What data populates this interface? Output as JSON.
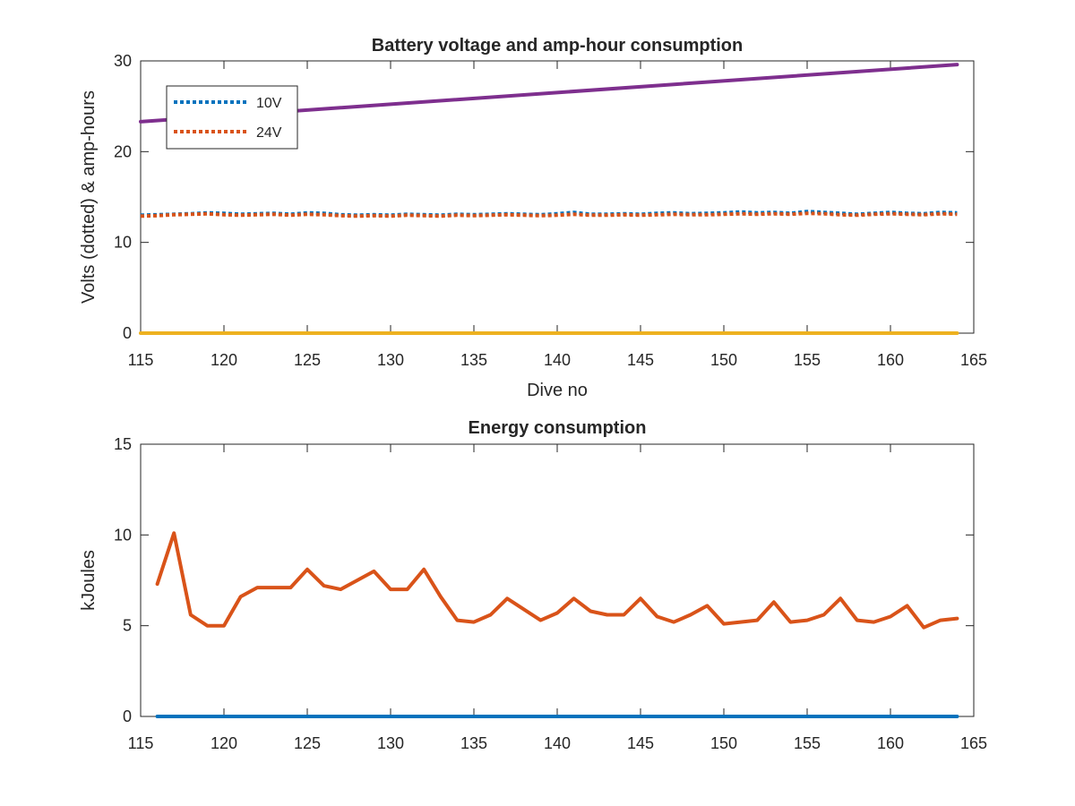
{
  "chart_data": [
    {
      "type": "line",
      "title": "Battery voltage and amp-hour consumption",
      "xlabel": "Dive no",
      "ylabel": "Volts (dotted) & amp-hours",
      "xlim": [
        115,
        165
      ],
      "ylim": [
        0,
        30
      ],
      "xticks": [
        "115",
        "120",
        "125",
        "130",
        "135",
        "140",
        "145",
        "150",
        "155",
        "160",
        "165"
      ],
      "yticks": [
        "0",
        "10",
        "20",
        "30"
      ],
      "grid": false,
      "legend_position": "top-left",
      "series": [
        {
          "name": "10V",
          "style": "dotted",
          "color": "#0072BD",
          "x": [
            115,
            116,
            117,
            118,
            119,
            120,
            121,
            122,
            123,
            124,
            125,
            126,
            127,
            128,
            129,
            130,
            131,
            132,
            133,
            134,
            135,
            136,
            137,
            138,
            139,
            140,
            141,
            142,
            143,
            144,
            145,
            146,
            147,
            148,
            149,
            150,
            151,
            152,
            153,
            154,
            155,
            156,
            157,
            158,
            159,
            160,
            161,
            162,
            163,
            164
          ],
          "y": [
            13.0,
            13.05,
            13.1,
            13.15,
            13.25,
            13.2,
            13.1,
            13.15,
            13.2,
            13.1,
            13.25,
            13.2,
            13.05,
            13.0,
            13.05,
            13.0,
            13.1,
            13.05,
            13.0,
            13.1,
            13.05,
            13.1,
            13.15,
            13.1,
            13.05,
            13.15,
            13.3,
            13.1,
            13.1,
            13.15,
            13.1,
            13.2,
            13.25,
            13.15,
            13.2,
            13.25,
            13.35,
            13.25,
            13.3,
            13.2,
            13.4,
            13.3,
            13.2,
            13.1,
            13.2,
            13.3,
            13.2,
            13.15,
            13.3,
            13.25
          ]
        },
        {
          "name": "24V",
          "style": "dotted",
          "color": "#D95319",
          "x": [
            115,
            116,
            117,
            118,
            119,
            120,
            121,
            122,
            123,
            124,
            125,
            126,
            127,
            128,
            129,
            130,
            131,
            132,
            133,
            134,
            135,
            136,
            137,
            138,
            139,
            140,
            141,
            142,
            143,
            144,
            145,
            146,
            147,
            148,
            149,
            150,
            151,
            152,
            153,
            154,
            155,
            156,
            157,
            158,
            159,
            160,
            161,
            162,
            163,
            164
          ],
          "y": [
            12.9,
            12.95,
            13.05,
            13.1,
            13.15,
            13.05,
            13.0,
            13.05,
            13.1,
            13.0,
            13.1,
            13.05,
            12.95,
            12.9,
            12.95,
            12.9,
            13.0,
            12.95,
            12.9,
            13.0,
            12.95,
            13.0,
            13.05,
            13.0,
            12.95,
            13.0,
            13.1,
            13.0,
            13.0,
            13.05,
            13.0,
            13.05,
            13.1,
            13.05,
            13.05,
            13.1,
            13.15,
            13.1,
            13.15,
            13.1,
            13.2,
            13.15,
            13.05,
            13.0,
            13.1,
            13.15,
            13.1,
            13.05,
            13.15,
            13.1
          ]
        },
        {
          "style": "solid",
          "color": "#EDB120",
          "x": [
            115,
            164
          ],
          "y": [
            0,
            0
          ]
        },
        {
          "style": "solid",
          "color": "#7E2F8E",
          "x": [
            115,
            164
          ],
          "y": [
            23.3,
            29.6
          ]
        }
      ]
    },
    {
      "type": "line",
      "title": "Energy consumption",
      "xlabel": "",
      "ylabel": "kJoules",
      "xlim": [
        115,
        165
      ],
      "ylim": [
        0,
        15
      ],
      "xticks": [
        "115",
        "120",
        "125",
        "130",
        "135",
        "140",
        "145",
        "150",
        "155",
        "160",
        "165"
      ],
      "yticks": [
        "0",
        "5",
        "10",
        "15"
      ],
      "grid": false,
      "series": [
        {
          "style": "solid",
          "color": "#0072BD",
          "x": [
            116,
            164
          ],
          "y": [
            0,
            0
          ]
        },
        {
          "style": "solid",
          "color": "#D95319",
          "x": [
            116,
            117,
            118,
            119,
            120,
            121,
            122,
            123,
            124,
            125,
            126,
            127,
            128,
            129,
            130,
            131,
            132,
            133,
            134,
            135,
            136,
            137,
            138,
            139,
            140,
            141,
            142,
            143,
            144,
            145,
            146,
            147,
            148,
            149,
            150,
            151,
            152,
            153,
            154,
            155,
            156,
            157,
            158,
            159,
            160,
            161,
            162,
            163,
            164
          ],
          "y": [
            7.3,
            10.1,
            5.6,
            5.0,
            5.0,
            6.6,
            7.1,
            7.1,
            7.1,
            8.1,
            7.2,
            7.0,
            7.5,
            8.0,
            7.0,
            7.0,
            8.1,
            6.6,
            5.3,
            5.2,
            5.6,
            6.5,
            5.9,
            5.3,
            5.7,
            6.5,
            5.8,
            5.6,
            5.6,
            6.5,
            5.5,
            5.2,
            5.6,
            6.1,
            5.1,
            5.2,
            5.3,
            6.3,
            5.2,
            5.3,
            5.6,
            6.5,
            5.3,
            5.2,
            5.5,
            6.1,
            4.9,
            5.3,
            5.4
          ]
        }
      ]
    }
  ]
}
